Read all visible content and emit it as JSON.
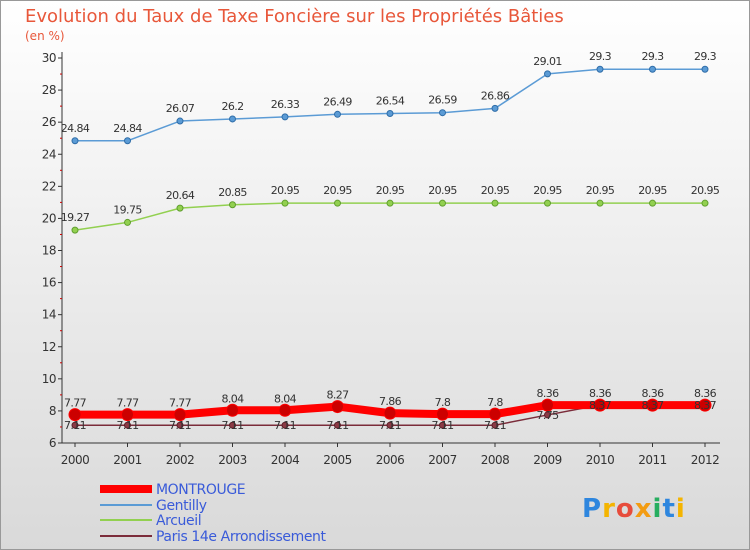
{
  "title": "Evolution du Taux de Taxe Foncière sur les Propriétés Bâties",
  "subtitle": "(en %)",
  "brand": "Proxiti",
  "chart_data": {
    "type": "line",
    "categories": [
      "2000",
      "2001",
      "2002",
      "2003",
      "2004",
      "2005",
      "2006",
      "2007",
      "2008",
      "2009",
      "2010",
      "2011",
      "2012"
    ],
    "ylim": [
      6,
      30
    ],
    "yticks": [
      "6",
      "8",
      "10",
      "12",
      "14",
      "16",
      "18",
      "20",
      "22",
      "24",
      "26",
      "28",
      "30"
    ],
    "grid": false,
    "legend_position": "bottom-left",
    "series": [
      {
        "name": "MONTROUGE",
        "color": "#ff0000",
        "values": [
          7.77,
          7.77,
          7.77,
          8.04,
          8.04,
          8.27,
          7.86,
          7.8,
          7.8,
          8.36,
          8.36,
          8.36,
          8.36
        ],
        "labels": [
          "7.77",
          "7.77",
          "7.77",
          "8.04",
          "8.04",
          "8.27",
          "7.86",
          "7.8",
          "7.8",
          "8.36",
          "8.36",
          "8.36",
          "8.36"
        ]
      },
      {
        "name": "Gentilly",
        "color": "#5b9bd5",
        "values": [
          24.84,
          24.84,
          26.07,
          26.2,
          26.33,
          26.49,
          26.54,
          26.59,
          26.86,
          29.01,
          29.3,
          29.3,
          29.3
        ],
        "labels": [
          "24.84",
          "24.84",
          "26.07",
          "26.2",
          "26.33",
          "26.49",
          "26.54",
          "26.59",
          "26.86",
          "29.01",
          "29.3",
          "29.3",
          "29.3"
        ]
      },
      {
        "name": "Arcueil",
        "color": "#92d050",
        "values": [
          19.27,
          19.75,
          20.64,
          20.85,
          20.95,
          20.95,
          20.95,
          20.95,
          20.95,
          20.95,
          20.95,
          20.95,
          20.95
        ],
        "labels": [
          "19.27",
          "19.75",
          "20.64",
          "20.85",
          "20.95",
          "20.95",
          "20.95",
          "20.95",
          "20.95",
          "20.95",
          "20.95",
          "20.95",
          "20.95"
        ]
      },
      {
        "name": "Paris 14e  Arrondissement",
        "color": "#7b2c3a",
        "values": [
          7.11,
          7.11,
          7.11,
          7.11,
          7.11,
          7.11,
          7.11,
          7.11,
          7.11,
          7.75,
          8.37,
          8.37,
          8.37
        ],
        "labels": [
          "7.11",
          "7.11",
          "7.11",
          "7.11",
          "7.11",
          "7.11",
          "7.11",
          "7.11",
          "7.11",
          "7.75",
          "8.37",
          "8.37",
          "8.37"
        ]
      }
    ]
  }
}
